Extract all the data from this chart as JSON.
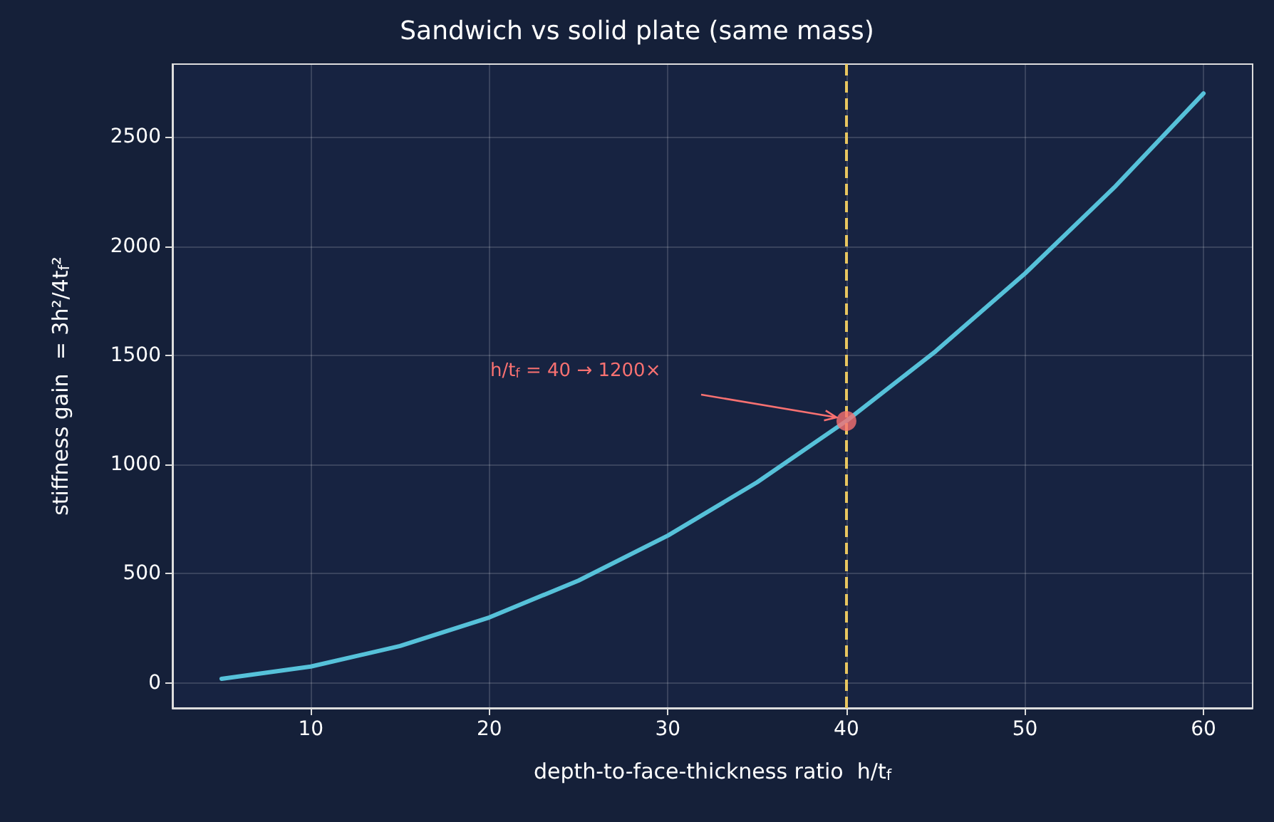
{
  "chart_data": {
    "type": "line",
    "title": "Sandwich vs solid plate (same mass)",
    "xlabel": "depth-to-face-thickness ratio  h/t$_{f}$",
    "ylabel": "stiffness gain  = 3h²/4t$_{f}$²",
    "x": [
      5,
      10,
      15,
      20,
      25,
      30,
      35,
      40,
      45,
      50,
      55,
      60
    ],
    "series": [
      {
        "marker": "none",
        "color": "#56c1d9",
        "values": [
          19,
          75,
          169,
          300,
          469,
          675,
          919,
          1200,
          1519,
          1875,
          2269,
          2700
        ]
      },
      {
        "type": "scatter",
        "marker": "circle",
        "color": "#f87171",
        "x": [
          40
        ],
        "values": [
          1200
        ]
      }
    ],
    "xlim": [
      2.25,
      62.75
    ],
    "xticks": [
      10,
      20,
      30,
      40,
      50,
      60
    ],
    "ylim": [
      -115,
      2834
    ],
    "yticks": [
      0,
      500,
      1000,
      1500,
      2000,
      2500
    ],
    "ref_lines": [
      {
        "axis": "x",
        "value": 40,
        "color": "#e8c65f",
        "line_style": "dashed"
      }
    ],
    "annotations": [
      "h/t$_{f}$ = 40 → 1200×"
    ],
    "grid": true,
    "line_style": "solid"
  }
}
